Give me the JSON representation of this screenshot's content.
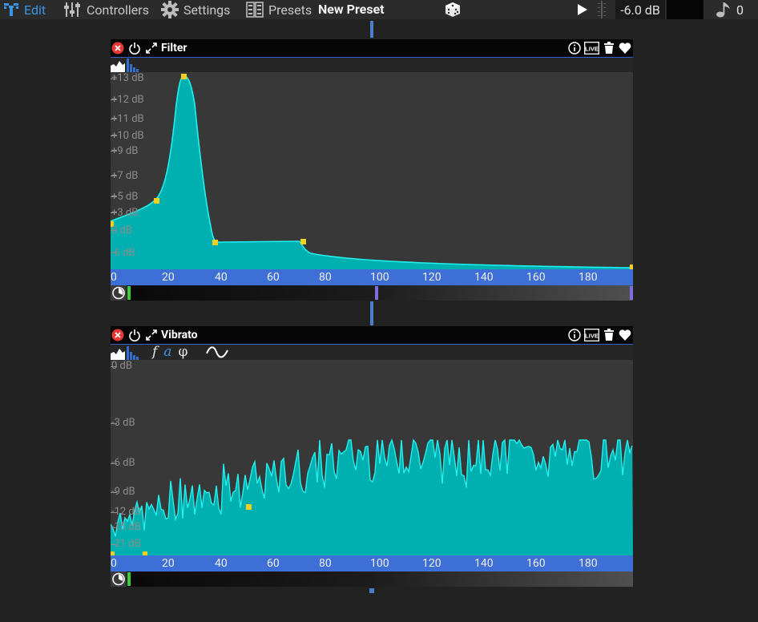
{
  "toolbar": {
    "edit_label": "Edit",
    "controllers_label": "Controllers",
    "settings_label": "Settings",
    "presets_label": "Presets",
    "preset_name": "New Preset",
    "volume": "-6.0 dB",
    "note_count": "0",
    "colors": {
      "active": "#3a95e8",
      "text": "#c8c8c8"
    }
  },
  "filter_module": {
    "title": "Filter",
    "y_labels": [
      "+13 dB",
      "+12 dB",
      "+11 dB",
      "+10 dB",
      "+9 dB",
      "+7 dB",
      "+5 dB",
      "+3 dB",
      "0 dB",
      "-6 dB"
    ],
    "x_labels": [
      "0",
      "20",
      "40",
      "60",
      "80",
      "100",
      "120",
      "140",
      "160",
      "180"
    ],
    "chart_data": {
      "type": "area",
      "xlabel": "",
      "ylabel": "",
      "xlim": [
        0,
        199
      ],
      "control_points": [
        {
          "x": 0,
          "y": "+3 dB"
        },
        {
          "x": 17,
          "y": "+5 dB"
        },
        {
          "x": 28,
          "y": "+13 dB"
        },
        {
          "x": 40,
          "y": "-6 dB"
        },
        {
          "x": 74,
          "y": "-6 dB"
        },
        {
          "x": 199,
          "y": "min"
        }
      ]
    }
  },
  "vibrato_module": {
    "title": "Vibrato",
    "waveform_params": [
      "f",
      "a",
      "φ"
    ],
    "y_labels": [
      "0 dB",
      "-3 dB",
      "-6 dB",
      "-9 dB",
      "-12 dB",
      "-15 dB",
      "-21 dB"
    ],
    "x_labels": [
      "0",
      "20",
      "40",
      "60",
      "80",
      "100",
      "120",
      "140",
      "160",
      "180"
    ],
    "chart_data": {
      "type": "area",
      "xlabel": "",
      "ylabel": "",
      "xlim": [
        0,
        199
      ],
      "note": "noisy random amplitude curve rising from about -15 dB to about -6 dB"
    }
  },
  "colors": {
    "fill": "#00b0b0",
    "line": "#20f0f0",
    "point": "#f0d020",
    "axis": "#3d6fd6"
  }
}
